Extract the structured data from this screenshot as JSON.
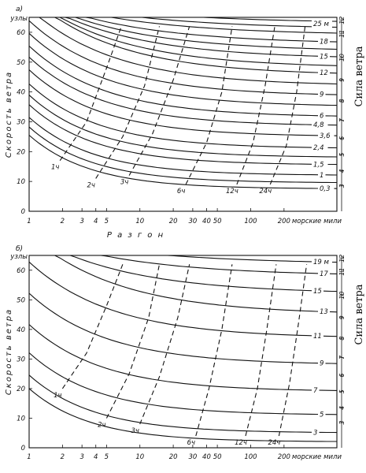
{
  "chart_data": [
    {
      "type": "line",
      "panel_label": "а)",
      "xlabel": "Р а з г о н",
      "ylabel": "Скорость ветра",
      "yunit": "узлы",
      "y2label": "Сила ветра",
      "xscale": "log",
      "xlim": [
        1,
        600
      ],
      "ylim": [
        0,
        65
      ],
      "grid": false,
      "x_ticks": [
        "1",
        "2",
        "3",
        "4",
        "5",
        "10",
        "20",
        "30",
        "40",
        "50",
        "100",
        "200"
      ],
      "x_tick_values": [
        1,
        2,
        3,
        4,
        5,
        10,
        20,
        30,
        40,
        50,
        100,
        200
      ],
      "x_end_label": "морские мили",
      "y_ticks": [
        0,
        10,
        20,
        30,
        40,
        50,
        60
      ],
      "beaufort_scale": [
        "3",
        "4",
        "5",
        "6",
        "7",
        "8",
        "9",
        "10",
        "11",
        "12"
      ],
      "beaufort_y": [
        8.5,
        13.5,
        19,
        24.5,
        30.5,
        37,
        44,
        51.5,
        59.5,
        64
      ],
      "height_curves": [
        {
          "label": "0,3",
          "y_limit": 7.5,
          "label_x": 180
        },
        {
          "label": "",
          "y_limit": 9.5
        },
        {
          "label": "1",
          "y_limit": 12
        },
        {
          "label": "1,5",
          "y_limit": 15.5
        },
        {
          "label": "",
          "y_limit": 18
        },
        {
          "label": "2,4",
          "y_limit": 21
        },
        {
          "label": "3,6",
          "y_limit": 25
        },
        {
          "label": "4,8",
          "y_limit": 28.5
        },
        {
          "label": "6",
          "y_limit": 31.5
        },
        {
          "label": "",
          "y_limit": 35
        },
        {
          "label": "9",
          "y_limit": 38.5
        },
        {
          "label": "",
          "y_limit": 42
        },
        {
          "label": "12",
          "y_limit": 45.5
        },
        {
          "label": "",
          "y_limit": 48
        },
        {
          "label": "15",
          "y_limit": 51
        },
        {
          "label": "",
          "y_limit": 53.5
        },
        {
          "label": "18",
          "y_limit": 56
        },
        {
          "label": "",
          "y_limit": 59
        },
        {
          "label": "",
          "y_limit": 61
        },
        {
          "label": "25 м",
          "y_limit": 63
        }
      ],
      "duration_curves": [
        {
          "label": "1ч",
          "points": [
            [
              1.9,
              17
            ],
            [
              3.3,
              30
            ],
            [
              5,
              48
            ],
            [
              6.8,
              62
            ]
          ]
        },
        {
          "label": "2ч",
          "points": [
            [
              4,
              11
            ],
            [
              7,
              25
            ],
            [
              11,
              42
            ],
            [
              15,
              62
            ]
          ]
        },
        {
          "label": "3ч",
          "points": [
            [
              8,
              12
            ],
            [
              13,
              26
            ],
            [
              20,
              44
            ],
            [
              28,
              62
            ]
          ]
        },
        {
          "label": "6ч",
          "points": [
            [
              26,
              9
            ],
            [
              40,
              23
            ],
            [
              55,
              40
            ],
            [
              68,
              62
            ]
          ]
        },
        {
          "label": "12ч",
          "points": [
            [
              75,
              9
            ],
            [
              105,
              23
            ],
            [
              135,
              42
            ],
            [
              165,
              62
            ]
          ]
        },
        {
          "label": "24ч",
          "points": [
            [
              150,
              9
            ],
            [
              210,
              22
            ],
            [
              260,
              40
            ],
            [
              310,
              62
            ]
          ]
        }
      ]
    },
    {
      "type": "line",
      "panel_label": "б)",
      "xlabel": "",
      "ylabel": "Скорость ветра",
      "yunit": "узлы",
      "y2label": "Сила ветра",
      "xscale": "log",
      "xlim": [
        1,
        600
      ],
      "ylim": [
        0,
        65
      ],
      "grid": false,
      "x_ticks": [
        "1",
        "2",
        "3",
        "4",
        "5",
        "10",
        "20",
        "30",
        "40",
        "50",
        "100",
        "200"
      ],
      "x_tick_values": [
        1,
        2,
        3,
        4,
        5,
        10,
        20,
        30,
        40,
        50,
        100,
        200
      ],
      "x_end_label": "морские мили",
      "y_ticks": [
        0,
        10,
        20,
        30,
        40,
        50,
        60
      ],
      "beaufort_scale": [
        "3",
        "4",
        "5",
        "6",
        "7",
        "8",
        "9",
        "10",
        "11",
        "12"
      ],
      "beaufort_y": [
        8.5,
        13.5,
        19,
        24.5,
        30.5,
        37,
        44,
        51.5,
        59.5,
        64
      ],
      "height_curves": [
        {
          "label": "",
          "y_limit": 2
        },
        {
          "label": "3",
          "y_limit": 5
        },
        {
          "label": "5",
          "y_limit": 11
        },
        {
          "label": "7",
          "y_limit": 19
        },
        {
          "label": "9",
          "y_limit": 28
        },
        {
          "label": "11",
          "y_limit": 37
        },
        {
          "label": "13",
          "y_limit": 45
        },
        {
          "label": "15",
          "y_limit": 52
        },
        {
          "label": "17",
          "y_limit": 58
        },
        {
          "label": "19 м",
          "y_limit": 62
        }
      ],
      "duration_curves": [
        {
          "label": "1ч",
          "points": [
            [
              2,
              20
            ],
            [
              3.3,
              32
            ],
            [
              5,
              48
            ],
            [
              7,
              62
            ]
          ]
        },
        {
          "label": "2ч",
          "points": [
            [
              5,
              10
            ],
            [
              8,
              25
            ],
            [
              12,
              44
            ],
            [
              15,
              62
            ]
          ]
        },
        {
          "label": "3ч",
          "points": [
            [
              10,
              8
            ],
            [
              15,
              24
            ],
            [
              22,
              44
            ],
            [
              28,
              62
            ]
          ]
        },
        {
          "label": "6ч",
          "points": [
            [
              32,
              4
            ],
            [
              42,
              20
            ],
            [
              55,
              40
            ],
            [
              68,
              62
            ]
          ]
        },
        {
          "label": "12ч",
          "points": [
            [
              90,
              4
            ],
            [
              115,
              20
            ],
            [
              140,
              40
            ],
            [
              170,
              62
            ]
          ]
        },
        {
          "label": "24ч",
          "points": [
            [
              180,
              4
            ],
            [
              225,
              22
            ],
            [
              270,
              42
            ],
            [
              320,
              62
            ]
          ]
        }
      ]
    }
  ]
}
